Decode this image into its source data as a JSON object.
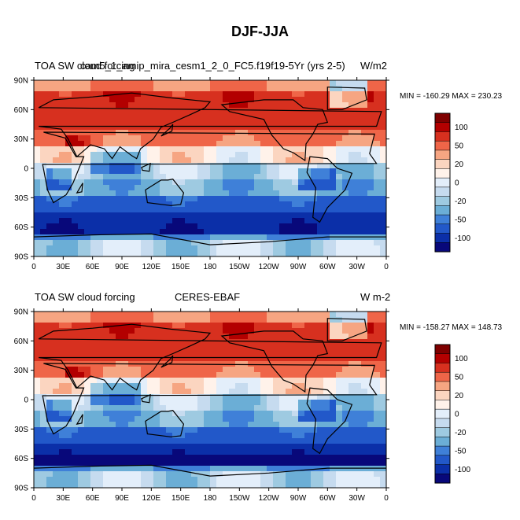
{
  "figure_title": "DJF-JJA",
  "chart_data": [
    {
      "type": "heatmap",
      "title": "DJF-JJA",
      "left_label": "TOA SW cloud forcing",
      "center_label": "cam5_1_amip_mira_cesm1_2_0_FC5.f19f19-5Yr (yrs 2-5)",
      "units_label": "W/m2",
      "min_label": "MIN = -160.29 MAX = 230.23",
      "min": -160.29,
      "max": 230.23,
      "x_ticks": [
        "0",
        "30E",
        "60E",
        "90E",
        "120E",
        "150E",
        "180",
        "150W",
        "120W",
        "90W",
        "60W",
        "30W",
        "0"
      ],
      "y_ticks": [
        "90N",
        "60N",
        "30N",
        "0",
        "30S",
        "60S",
        "90S"
      ],
      "colorbar_levels": [
        "100",
        "50",
        "20",
        "0",
        "-20",
        "-50",
        "-100"
      ],
      "colorbar_colors": [
        "#7f0000",
        "#b30000",
        "#d7301f",
        "#ef6548",
        "#f6a582",
        "#fbd5c0",
        "#fff2ea",
        "#e3eefa",
        "#c6dbef",
        "#9ecae1",
        "#6baed6",
        "#3f80d8",
        "#2258c9",
        "#0b2fa8",
        "#08087a"
      ]
    },
    {
      "type": "heatmap",
      "title": "DJF-JJA",
      "left_label": "TOA SW cloud forcing",
      "center_label": "CERES-EBAF",
      "units_label": "W m-2",
      "min_label": "MIN = -158.27 MAX = 148.73",
      "min": -158.27,
      "max": 148.73,
      "x_ticks": [
        "0",
        "30E",
        "60E",
        "90E",
        "120E",
        "150E",
        "180",
        "150W",
        "120W",
        "90W",
        "60W",
        "30W",
        "0"
      ],
      "y_ticks": [
        "90N",
        "60N",
        "30N",
        "0",
        "30S",
        "60S",
        "90S"
      ],
      "colorbar_levels": [
        "100",
        "50",
        "20",
        "0",
        "-20",
        "-50",
        "-100"
      ],
      "colorbar_colors": [
        "#7f0000",
        "#b30000",
        "#d7301f",
        "#ef6548",
        "#f6a582",
        "#fbd5c0",
        "#fff2ea",
        "#e3eefa",
        "#c6dbef",
        "#9ecae1",
        "#6baed6",
        "#3f80d8",
        "#2258c9",
        "#0b2fa8",
        "#08087a"
      ]
    }
  ]
}
